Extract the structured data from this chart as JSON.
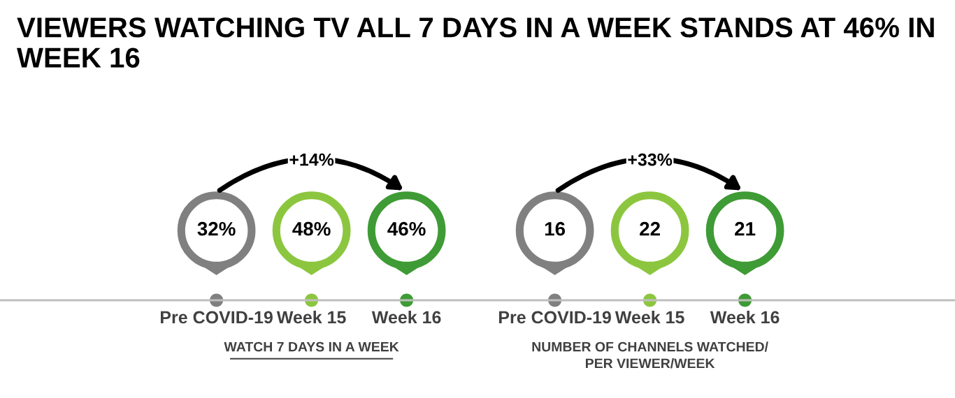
{
  "chart_data": [
    {
      "type": "other",
      "title": "VIEWERS WATCHING TV ALL 7 DAYS IN A WEEK STANDS AT 46% IN WEEK 16",
      "xlabel": "WATCH 7 DAYS IN A WEEK",
      "categories": [
        "Pre COVID-19",
        "Week 15",
        "Week 16"
      ],
      "values": [
        32,
        48,
        46
      ],
      "value_labels": [
        "32%",
        "48%",
        "46%"
      ],
      "colors": [
        "#808080",
        "#8cc63f",
        "#3f9b35"
      ],
      "annotations": [
        "+14%"
      ]
    },
    {
      "type": "other",
      "xlabel": "NUMBER OF CHANNELS WATCHED/\nPER VIEWER/WEEK",
      "categories": [
        "Pre COVID-19",
        "Week 15",
        "Week 16"
      ],
      "values": [
        16,
        22,
        21
      ],
      "value_labels": [
        "16",
        "22",
        "21"
      ],
      "colors": [
        "#808080",
        "#8cc63f",
        "#3f9b35"
      ],
      "annotations": [
        "+33%"
      ]
    }
  ]
}
